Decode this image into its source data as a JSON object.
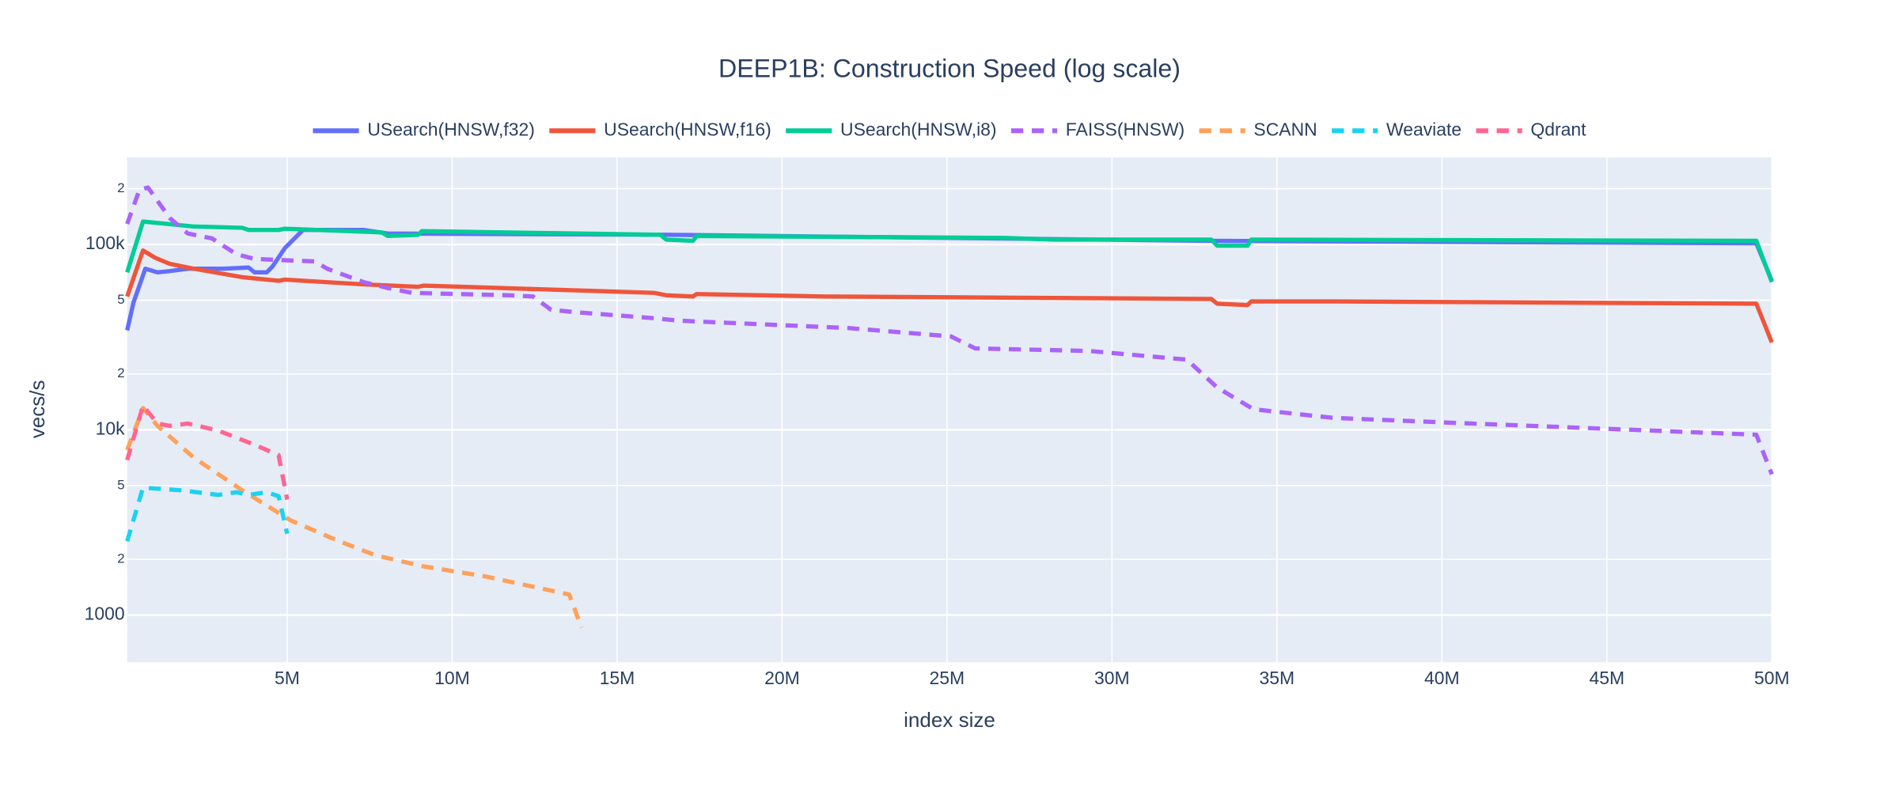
{
  "chart_data": {
    "type": "line",
    "title": "DEEP1B: Construction Speed (log scale)",
    "x_label": "index size",
    "y_label": "vecs/s",
    "log_y": true,
    "grid": true,
    "legend": "top",
    "xlim": [
      150000,
      50000000
    ],
    "ylim": [
      556,
      295000
    ],
    "xticks": [
      {
        "value": 5000000,
        "label": "5M"
      },
      {
        "value": 10000000,
        "label": "10M"
      },
      {
        "value": 15000000,
        "label": "15M"
      },
      {
        "value": 20000000,
        "label": "20M"
      },
      {
        "value": 25000000,
        "label": "25M"
      },
      {
        "value": 30000000,
        "label": "30M"
      },
      {
        "value": 35000000,
        "label": "35M"
      },
      {
        "value": 40000000,
        "label": "40M"
      },
      {
        "value": 45000000,
        "label": "45M"
      },
      {
        "value": 50000000,
        "label": "50M"
      }
    ],
    "yticks": [
      1000,
      {
        "value": 2000,
        "label": "2"
      },
      {
        "value": 5000,
        "label": "5"
      },
      {
        "value": 10000,
        "label": "10k"
      },
      {
        "value": 20000,
        "label": "2"
      },
      {
        "value": 50000,
        "label": "5"
      },
      {
        "value": 100000,
        "label": "100k"
      },
      {
        "value": 200000,
        "label": "2"
      }
    ],
    "series": [
      {
        "name": "USearch(HNSW,f32)",
        "color": "#636efa",
        "dash": "solid",
        "x": [
          150000,
          340000,
          700000,
          1070000,
          1440000,
          1990000,
          3090000,
          3830000,
          4010000,
          4380000,
          4560000,
          4930000,
          5480000,
          7310000,
          8050000,
          16490000,
          33010000,
          49530000,
          50000000
        ],
        "values": [
          34400,
          48500,
          74000,
          70700,
          71800,
          74000,
          74000,
          75100,
          70700,
          70700,
          76300,
          95600,
          119800,
          119800,
          114500,
          112800,
          104600,
          101500,
          63700
        ]
      },
      {
        "name": "USearch(HNSW,f16)",
        "color": "#EF553B",
        "dash": "solid",
        "x": [
          150000,
          630000,
          1000000,
          1440000,
          2170000,
          3640000,
          4740000,
          4930000,
          7310000,
          8970000,
          9140000,
          16120000,
          16490000,
          17300000,
          17410000,
          21270000,
          33010000,
          33190000,
          34110000,
          34220000,
          36680000,
          49530000,
          50000000
        ],
        "values": [
          52400,
          92800,
          84700,
          78600,
          74000,
          66600,
          63700,
          64600,
          60900,
          59100,
          60000,
          54800,
          53200,
          52400,
          54000,
          52400,
          50800,
          47900,
          47100,
          49300,
          49300,
          47900,
          29600
        ]
      },
      {
        "name": "USearch(HNSW,i8)",
        "color": "#00cc96",
        "dash": "solid",
        "x": [
          150000,
          630000,
          2170000,
          3640000,
          3830000,
          4740000,
          4930000,
          7870000,
          8050000,
          8970000,
          9080000,
          16310000,
          16490000,
          17300000,
          17410000,
          26770000,
          28240000,
          33010000,
          33190000,
          34110000,
          34220000,
          49530000,
          50000000
        ],
        "values": [
          70700,
          133000,
          125000,
          123000,
          119800,
          119800,
          121600,
          116200,
          111100,
          112800,
          118000,
          112800,
          106200,
          104600,
          111100,
          108500,
          106200,
          106200,
          98500,
          98500,
          106200,
          104600,
          62700
        ]
      },
      {
        "name": "FAISS(HNSW)",
        "color": "#ab63fa",
        "dash": "dash",
        "x": [
          150000,
          520000,
          780000,
          1440000,
          1990000,
          2720000,
          3460000,
          4010000,
          5840000,
          6210000,
          7310000,
          8050000,
          8780000,
          11720000,
          12450000,
          13000000,
          13740000,
          16120000,
          16860000,
          22000000,
          25120000,
          25850000,
          29340000,
          32270000,
          33190000,
          34290000,
          36680000,
          40350000,
          45120000,
          49530000,
          50000000
        ],
        "values": [
          129000,
          197000,
          203000,
          139000,
          114500,
          107800,
          88600,
          83500,
          81000,
          74000,
          62700,
          58200,
          54800,
          53200,
          52400,
          44400,
          43100,
          40000,
          38800,
          35400,
          31900,
          27500,
          26600,
          23900,
          16900,
          12900,
          11600,
          10900,
          10100,
          9400,
          5750
        ]
      },
      {
        "name": "SCANN",
        "color": "#FFA15A",
        "dash": "dash",
        "x": [
          150000,
          630000,
          1070000,
          2170000,
          3640000,
          5110000,
          6580000,
          7680000,
          9140000,
          10980000,
          13550000,
          13920000
        ],
        "values": [
          7770,
          13100,
          10500,
          7070,
          4710,
          3240,
          2500,
          2100,
          1830,
          1620,
          1290,
          855
        ]
      },
      {
        "name": "Weaviate",
        "color": "#19d3f3",
        "dash": "dash",
        "x": [
          150000,
          630000,
          1810000,
          2910000,
          3460000,
          3830000,
          4380000,
          4740000,
          5000000
        ],
        "values": [
          2500,
          4870,
          4710,
          4450,
          4600,
          4450,
          4600,
          4380,
          2750
        ]
      },
      {
        "name": "Qdrant",
        "color": "#FF6692",
        "dash": "dash",
        "x": [
          150000,
          630000,
          1070000,
          1440000,
          1990000,
          2910000,
          4010000,
          4740000,
          5000000
        ],
        "values": [
          6860,
          13500,
          10800,
          10500,
          10800,
          9900,
          8300,
          7300,
          4200
        ]
      }
    ]
  }
}
